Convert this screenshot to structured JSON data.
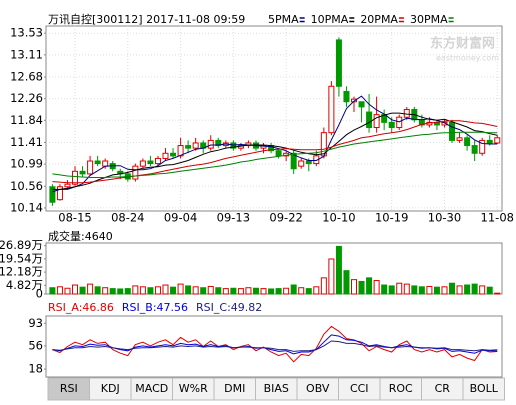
{
  "header": {
    "title": "万讯自控[300112] 2017-11-08 09:59",
    "watermark": "东方财富网",
    "watermark_sub": "eastmoney.com"
  },
  "tabs": [
    "RSI",
    "KDJ",
    "MACD",
    "W%R",
    "DMI",
    "BIAS",
    "OBV",
    "CCI",
    "ROC",
    "CR",
    "BOLL"
  ],
  "selected_tab": 0,
  "chart_data": [
    {
      "type": "candlestick",
      "categories": [
        null,
        null,
        null,
        "08-15",
        null,
        null,
        null,
        null,
        null,
        null,
        "08-24",
        null,
        null,
        null,
        null,
        null,
        null,
        "09-04",
        null,
        null,
        null,
        null,
        null,
        null,
        "09-13",
        null,
        null,
        null,
        null,
        null,
        null,
        "09-22",
        null,
        null,
        null,
        null,
        null,
        null,
        "10-10",
        null,
        null,
        null,
        null,
        null,
        null,
        "10-19",
        null,
        null,
        null,
        null,
        null,
        null,
        "10-30",
        null,
        null,
        null,
        null,
        null,
        null,
        "11-08"
      ],
      "open": [
        10.55,
        10.3,
        10.55,
        10.6,
        10.85,
        10.8,
        11.05,
        10.95,
        11.0,
        10.85,
        10.8,
        10.7,
        10.95,
        11.05,
        11.0,
        11.1,
        11.2,
        11.15,
        11.35,
        11.3,
        11.4,
        11.3,
        11.45,
        11.35,
        11.4,
        11.3,
        11.35,
        11.4,
        11.3,
        11.35,
        11.25,
        11.15,
        11.2,
        10.95,
        11.05,
        11.0,
        11.15,
        11.6,
        13.4,
        12.4,
        12.2,
        12.2,
        12.0,
        11.7,
        11.95,
        11.8,
        11.7,
        11.9,
        12.05,
        11.85,
        11.75,
        11.8,
        11.75,
        11.8,
        11.45,
        11.5,
        11.35,
        11.2,
        11.45,
        11.4
      ],
      "high": [
        10.6,
        10.6,
        10.68,
        10.95,
        10.95,
        11.15,
        11.15,
        11.1,
        11.05,
        10.9,
        10.85,
        11.0,
        11.1,
        11.15,
        11.15,
        11.3,
        11.3,
        11.5,
        11.45,
        11.5,
        11.45,
        11.55,
        11.5,
        11.45,
        11.45,
        11.4,
        11.45,
        11.45,
        11.4,
        11.4,
        11.3,
        11.25,
        11.25,
        11.1,
        11.1,
        11.25,
        11.7,
        12.6,
        13.45,
        12.5,
        12.3,
        12.2,
        12.35,
        12.3,
        12.05,
        11.9,
        11.95,
        12.1,
        12.1,
        11.95,
        11.9,
        11.85,
        11.85,
        11.85,
        11.6,
        11.55,
        11.45,
        11.5,
        11.55,
        11.55
      ],
      "low": [
        10.18,
        10.28,
        10.5,
        10.55,
        10.75,
        10.78,
        10.95,
        10.9,
        10.85,
        10.7,
        10.65,
        10.65,
        10.9,
        10.95,
        10.95,
        11.05,
        11.1,
        11.1,
        11.2,
        11.25,
        11.2,
        11.25,
        11.3,
        11.3,
        11.25,
        11.25,
        11.3,
        11.25,
        11.2,
        11.2,
        11.1,
        11.05,
        10.8,
        10.9,
        10.85,
        10.95,
        11.1,
        11.55,
        12.3,
        12.1,
        12.0,
        11.8,
        11.6,
        11.6,
        11.65,
        11.6,
        11.65,
        11.85,
        11.8,
        11.7,
        11.7,
        11.65,
        11.7,
        11.4,
        11.4,
        11.25,
        11.05,
        11.15,
        11.35,
        11.38
      ],
      "close": [
        10.25,
        10.55,
        10.6,
        10.85,
        10.8,
        11.05,
        11.0,
        11.05,
        10.9,
        10.8,
        10.7,
        10.95,
        11.05,
        11.0,
        11.1,
        11.2,
        11.15,
        11.35,
        11.3,
        11.4,
        11.3,
        11.45,
        11.35,
        11.4,
        11.3,
        11.35,
        11.4,
        11.3,
        11.35,
        11.25,
        11.15,
        11.2,
        10.9,
        11.05,
        11.0,
        11.15,
        11.6,
        12.5,
        12.5,
        12.2,
        12.25,
        12.1,
        11.7,
        11.95,
        11.8,
        11.7,
        11.9,
        12.05,
        11.85,
        11.75,
        11.8,
        11.75,
        11.8,
        11.45,
        11.5,
        11.35,
        11.2,
        11.45,
        11.4,
        11.5
      ],
      "up_color": "#e00000",
      "down_color": "#009a00",
      "series": [
        {
          "name": "5PMA",
          "color": "#000080",
          "values": [
            10.45,
            10.5,
            10.5,
            10.55,
            10.61,
            10.77,
            10.86,
            10.95,
            10.96,
            10.96,
            10.89,
            10.88,
            10.88,
            10.9,
            10.96,
            11.06,
            11.1,
            11.16,
            11.22,
            11.28,
            11.3,
            11.36,
            11.36,
            11.38,
            11.36,
            11.37,
            11.36,
            11.35,
            11.34,
            11.33,
            11.29,
            11.25,
            11.17,
            11.11,
            11.06,
            11.06,
            11.14,
            11.46,
            11.75,
            12.07,
            12.21,
            12.31,
            12.15,
            12.04,
            11.96,
            11.85,
            11.81,
            11.88,
            11.86,
            11.85,
            11.87,
            11.84,
            11.79,
            11.71,
            11.66,
            11.57,
            11.46,
            11.39,
            11.38,
            11.38
          ]
        },
        {
          "name": "10PMA",
          "color": "#000000",
          "values": [
            10.5,
            10.5,
            10.52,
            10.55,
            10.58,
            10.62,
            10.68,
            10.73,
            10.78,
            10.8,
            10.83,
            10.87,
            10.91,
            10.93,
            10.94,
            10.97,
            10.98,
            11.02,
            11.06,
            11.12,
            11.18,
            11.23,
            11.26,
            11.3,
            11.32,
            11.34,
            11.36,
            11.36,
            11.36,
            11.35,
            11.33,
            11.3,
            11.26,
            11.22,
            11.19,
            11.17,
            11.19,
            11.31,
            11.43,
            11.56,
            11.65,
            11.72,
            11.8,
            11.89,
            11.94,
            11.98,
            11.98,
            11.96,
            11.95,
            11.9,
            11.86,
            11.84,
            11.86,
            11.81,
            11.76,
            11.71,
            11.64,
            11.62,
            11.58,
            11.55
          ]
        },
        {
          "name": "20PMA",
          "color": "#d00000",
          "values": [
            10.65,
            10.64,
            10.63,
            10.63,
            10.63,
            10.64,
            10.66,
            10.68,
            10.7,
            10.72,
            10.74,
            10.76,
            10.78,
            10.8,
            10.83,
            10.86,
            10.89,
            10.92,
            10.95,
            10.97,
            10.99,
            11.02,
            11.06,
            11.1,
            11.13,
            11.16,
            11.19,
            11.22,
            11.25,
            11.27,
            11.28,
            11.29,
            11.28,
            11.27,
            11.27,
            11.27,
            11.28,
            11.32,
            11.37,
            11.41,
            11.45,
            11.5,
            11.52,
            11.55,
            11.58,
            11.6,
            11.62,
            11.66,
            11.71,
            11.76,
            11.79,
            11.8,
            11.82,
            11.83,
            11.83,
            11.81,
            11.79,
            11.78,
            11.75,
            11.72
          ]
        },
        {
          "name": "30PMA",
          "color": "#008000",
          "values": [
            10.8,
            10.78,
            10.76,
            10.75,
            10.74,
            10.73,
            10.73,
            10.73,
            10.74,
            10.74,
            10.75,
            10.76,
            10.77,
            10.78,
            10.8,
            10.81,
            10.83,
            10.85,
            10.87,
            10.89,
            10.91,
            10.93,
            10.95,
            10.97,
            11.0,
            11.03,
            11.05,
            11.08,
            11.1,
            11.12,
            11.14,
            11.16,
            11.18,
            11.19,
            11.2,
            11.21,
            11.24,
            11.28,
            11.32,
            11.35,
            11.38,
            11.4,
            11.42,
            11.44,
            11.46,
            11.48,
            11.5,
            11.52,
            11.54,
            11.56,
            11.57,
            11.59,
            11.6,
            11.6,
            11.61,
            11.61,
            11.61,
            11.61,
            11.6,
            11.6
          ]
        }
      ],
      "ylim": [
        10.08,
        13.67
      ],
      "yticks": [
        13.53,
        13.11,
        12.68,
        12.26,
        11.84,
        11.41,
        10.99,
        10.56,
        10.14
      ],
      "grid": true
    },
    {
      "type": "bar",
      "label": "成交量:4640",
      "values": [
        3.5,
        4,
        3.2,
        5,
        3.8,
        5.5,
        4,
        3.5,
        3,
        2.8,
        3,
        4.5,
        4,
        3.5,
        4,
        5,
        3.8,
        5.5,
        4.5,
        4,
        3.5,
        4.2,
        3.5,
        3,
        3.2,
        3,
        3.5,
        3.2,
        3,
        2.8,
        3,
        3.2,
        5,
        3.5,
        3,
        4,
        9,
        19.5,
        26.5,
        13,
        8,
        7,
        9,
        7.5,
        5,
        4.5,
        6,
        5.5,
        4.5,
        4,
        4.2,
        3.8,
        4,
        6,
        4.5,
        5,
        5.5,
        4.5,
        3.8,
        0.464
      ],
      "ylim": [
        0,
        28.4
      ],
      "yticks": [
        {
          "value": 26.89,
          "label": "26.89万"
        },
        {
          "value": 19.54,
          "label": "19.54万"
        },
        {
          "value": 12.18,
          "label": "12.18万"
        },
        {
          "value": 4.82,
          "label": "4.82万"
        },
        0
      ]
    },
    {
      "type": "line",
      "series": [
        {
          "name": "RSI_A:46.86",
          "color": "#e00000",
          "values": [
            50,
            45,
            55,
            62,
            58,
            66,
            60,
            62,
            50,
            44,
            40,
            58,
            62,
            56,
            62,
            66,
            58,
            70,
            62,
            66,
            55,
            64,
            55,
            58,
            50,
            55,
            58,
            48,
            54,
            46,
            40,
            44,
            30,
            42,
            40,
            52,
            75,
            88,
            80,
            68,
            66,
            60,
            48,
            55,
            50,
            46,
            58,
            64,
            50,
            46,
            50,
            46,
            50,
            38,
            42,
            36,
            32,
            50,
            46,
            46.86
          ]
        },
        {
          "name": "RSI_B:47.56",
          "color": "#0000e0",
          "values": [
            50,
            48,
            52,
            56,
            55,
            59,
            57,
            58,
            53,
            50,
            48,
            54,
            56,
            54,
            56,
            58,
            56,
            60,
            58,
            59,
            55,
            58,
            55,
            56,
            53,
            54,
            55,
            52,
            53,
            50,
            47,
            48,
            43,
            46,
            46,
            50,
            62,
            74,
            72,
            66,
            65,
            62,
            56,
            58,
            55,
            53,
            56,
            58,
            54,
            52,
            53,
            51,
            52,
            47,
            48,
            46,
            44,
            49,
            48,
            47.56
          ]
        },
        {
          "name": "RSI_C:49.82",
          "color": "#202080",
          "values": [
            50,
            49,
            51,
            53,
            53,
            55,
            54,
            55,
            53,
            51,
            50,
            52,
            53,
            53,
            54,
            55,
            54,
            56,
            55,
            56,
            54,
            55,
            54,
            55,
            53,
            54,
            54,
            53,
            53,
            52,
            50,
            50,
            47,
            48,
            48,
            50,
            56,
            64,
            63,
            60,
            60,
            58,
            55,
            56,
            54,
            53,
            54,
            55,
            54,
            53,
            53,
            52,
            53,
            50,
            50,
            49,
            48,
            50,
            49,
            49.82
          ]
        }
      ],
      "ylim": [
        5,
        105
      ],
      "yticks": [
        93,
        56,
        18
      ]
    }
  ]
}
